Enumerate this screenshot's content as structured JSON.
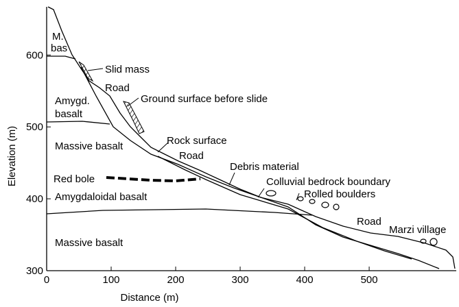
{
  "axes": {
    "x_label": "Distance (m)",
    "y_label": "Elevation (m)",
    "xlim": [
      0,
      635
    ],
    "ylim": [
      300,
      667
    ],
    "xticks": [
      0,
      100,
      200,
      300,
      400,
      500
    ],
    "yticks": [
      300,
      400,
      500,
      600
    ]
  },
  "labels": [
    "M.",
    "bas",
    "Slid mass",
    "Road",
    "Ground surface before slide",
    "Amygd.",
    "basalt",
    "Massive basalt",
    "Rock surface",
    "Road",
    "Debris material",
    "Red bole",
    "Colluvial bedrock boundary",
    "Amygdaloidal basalt",
    "Rolled boulders",
    "Road",
    "Marzi village",
    "Massive basalt"
  ]
}
